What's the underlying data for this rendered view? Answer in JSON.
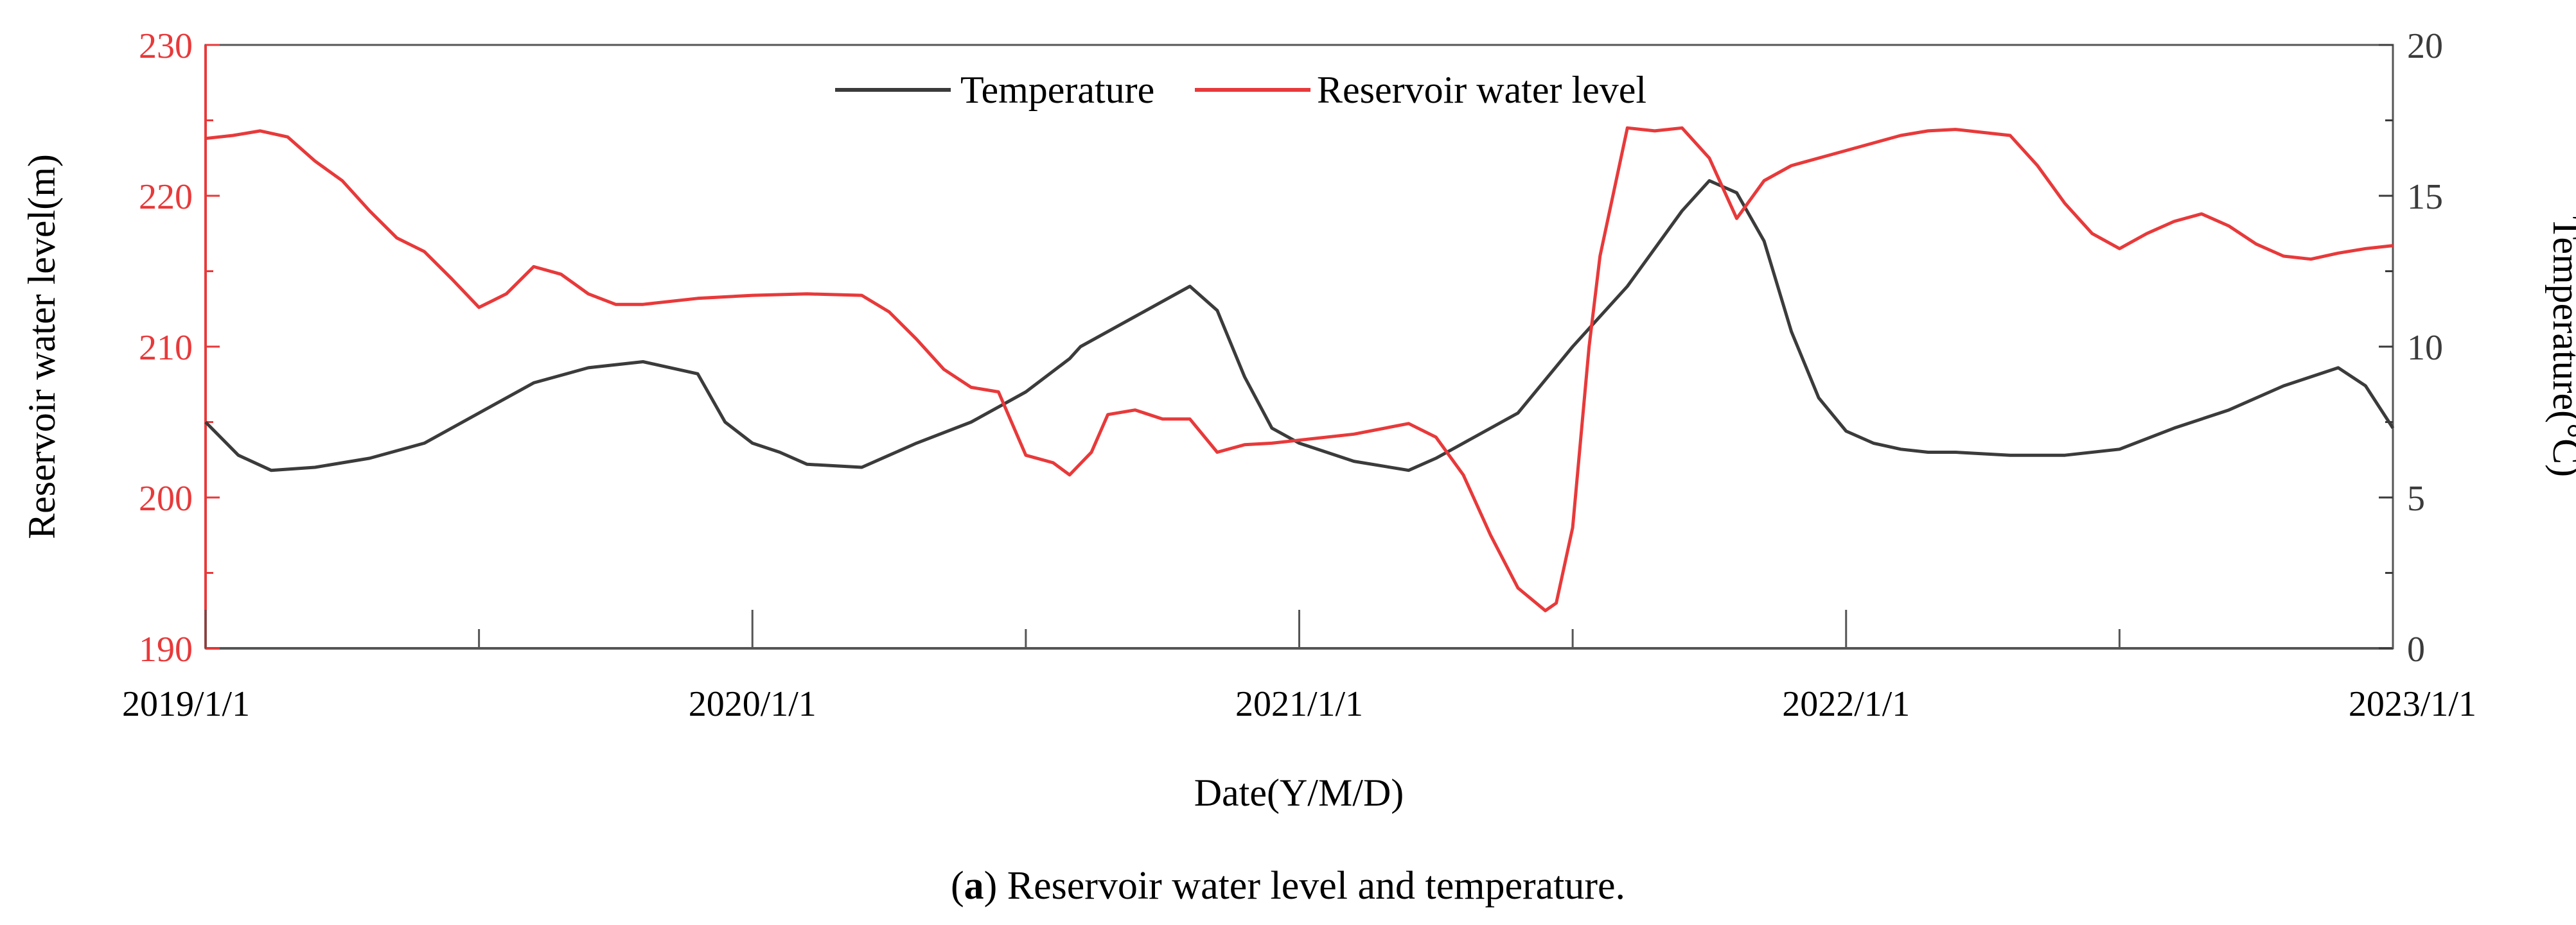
{
  "chart_data": {
    "type": "line",
    "x_range": [
      "2019/1/1",
      "2023/1/1"
    ],
    "x_ticks": [
      "2019/1/1",
      "2020/1/1",
      "2021/1/1",
      "2022/1/1",
      "2023/1/1"
    ],
    "xlabel": "Date(Y/M/D)",
    "left_axis": {
      "label": "Reservoir water level(m)",
      "min": 190,
      "max": 230,
      "ticks": [
        "190",
        "200",
        "210",
        "220",
        "230"
      ]
    },
    "right_axis": {
      "label": "Temperature(°C)",
      "min": 0,
      "max": 20,
      "ticks": [
        "0",
        "5",
        "10",
        "15",
        "20"
      ]
    },
    "legend_position": "top-center",
    "series": [
      {
        "name": "Temperature",
        "axis": "right",
        "x_years": [
          0,
          0.06,
          0.12,
          0.2,
          0.3,
          0.4,
          0.5,
          0.6,
          0.7,
          0.8,
          0.9,
          0.95,
          1.0,
          1.05,
          1.1,
          1.2,
          1.25,
          1.3,
          1.4,
          1.5,
          1.58,
          1.6,
          1.7,
          1.8,
          1.85,
          1.9,
          1.95,
          2.0,
          2.1,
          2.2,
          2.25,
          2.3,
          2.4,
          2.5,
          2.6,
          2.7,
          2.75,
          2.8,
          2.85,
          2.9,
          2.95,
          3.0,
          3.05,
          3.1,
          3.15,
          3.2,
          3.3,
          3.4,
          3.5,
          3.6,
          3.7,
          3.8,
          3.9,
          3.95,
          4.0
        ],
        "values": [
          7.5,
          6.4,
          5.9,
          6.0,
          6.3,
          6.8,
          7.8,
          8.8,
          9.3,
          9.5,
          9.1,
          7.5,
          6.8,
          6.5,
          6.1,
          6.0,
          6.4,
          6.8,
          7.5,
          8.5,
          9.6,
          10.0,
          11.0,
          12.0,
          11.2,
          9.0,
          7.3,
          6.8,
          6.2,
          5.9,
          6.3,
          6.8,
          7.8,
          10.0,
          12.0,
          14.5,
          15.5,
          15.1,
          13.5,
          10.5,
          8.3,
          7.2,
          6.8,
          6.6,
          6.5,
          6.5,
          6.4,
          6.4,
          6.6,
          7.3,
          7.9,
          8.7,
          9.3,
          8.7,
          7.3
        ]
      },
      {
        "name": "Reservoir water level",
        "axis": "left",
        "x_years": [
          0,
          0.05,
          0.1,
          0.15,
          0.2,
          0.25,
          0.3,
          0.35,
          0.4,
          0.45,
          0.5,
          0.55,
          0.6,
          0.65,
          0.7,
          0.75,
          0.8,
          0.9,
          1.0,
          1.1,
          1.2,
          1.25,
          1.3,
          1.35,
          1.4,
          1.45,
          1.5,
          1.55,
          1.58,
          1.62,
          1.65,
          1.7,
          1.75,
          1.8,
          1.85,
          1.9,
          1.95,
          2.0,
          2.1,
          2.2,
          2.25,
          2.3,
          2.35,
          2.4,
          2.45,
          2.47,
          2.5,
          2.53,
          2.55,
          2.6,
          2.65,
          2.7,
          2.75,
          2.8,
          2.85,
          2.9,
          3.0,
          3.1,
          3.15,
          3.2,
          3.3,
          3.35,
          3.4,
          3.45,
          3.5,
          3.55,
          3.6,
          3.65,
          3.7,
          3.75,
          3.8,
          3.85,
          3.9,
          3.95,
          4.0
        ],
        "values": [
          223.8,
          224.0,
          224.3,
          223.9,
          222.3,
          221.0,
          219.0,
          217.2,
          216.3,
          214.5,
          212.6,
          213.5,
          215.3,
          214.8,
          213.5,
          212.8,
          212.8,
          213.2,
          213.4,
          213.5,
          213.4,
          212.3,
          210.5,
          208.5,
          207.3,
          207.0,
          202.8,
          202.3,
          201.5,
          203.0,
          205.5,
          205.8,
          205.2,
          205.2,
          203.0,
          203.5,
          203.6,
          203.8,
          204.2,
          204.9,
          204.0,
          201.5,
          197.5,
          194.0,
          192.5,
          193.0,
          198.0,
          210.0,
          216.0,
          224.5,
          224.3,
          224.5,
          222.5,
          218.5,
          221.0,
          222.0,
          223.0,
          224.0,
          224.3,
          224.4,
          224.0,
          222.0,
          219.5,
          217.5,
          216.5,
          217.5,
          218.3,
          218.8,
          218.0,
          216.8,
          216.0,
          215.8,
          216.2,
          216.5,
          216.7
        ]
      }
    ],
    "colors": {
      "temperature": "#3b3b3b",
      "water_level": "#e8393a",
      "left_axis": "#e8393a",
      "right_axis": "#3b3b3b"
    }
  },
  "caption": {
    "prefix": "(",
    "letter": "a",
    "suffix": ") Reservoir water level and temperature."
  }
}
